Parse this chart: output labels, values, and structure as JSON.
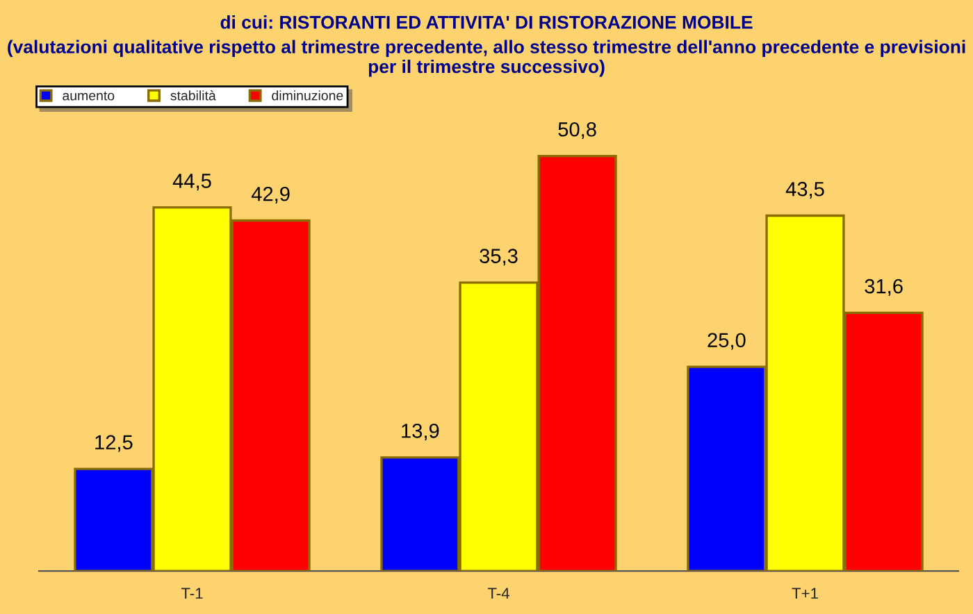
{
  "chart_data": {
    "type": "bar",
    "title": "di cui: RISTORANTI ED ATTIVITA' DI RISTORAZIONE MOBILE",
    "subtitle": "(valutazioni qualitative rispetto al trimestre precedente, allo stesso trimestre dell'anno precedente e previsioni per il trimestre successivo)",
    "categories": [
      "T-1",
      "T-4",
      "T+1"
    ],
    "series": [
      {
        "name": "aumento",
        "color": "#0000ff",
        "values": [
          12.5,
          13.9,
          25.0
        ],
        "value_labels": [
          "12,5",
          "13,9",
          "25,0"
        ]
      },
      {
        "name": "stabilità",
        "color": "#ffff00",
        "values": [
          44.5,
          35.3,
          43.5
        ],
        "value_labels": [
          "44,5",
          "35,3",
          "43,5"
        ]
      },
      {
        "name": "diminuzione",
        "color": "#ff0000",
        "values": [
          42.9,
          50.8,
          31.6
        ],
        "value_labels": [
          "42,9",
          "50,8",
          "31,6"
        ]
      }
    ],
    "legend": "top left",
    "grid": false,
    "tick_labels": "x"
  }
}
